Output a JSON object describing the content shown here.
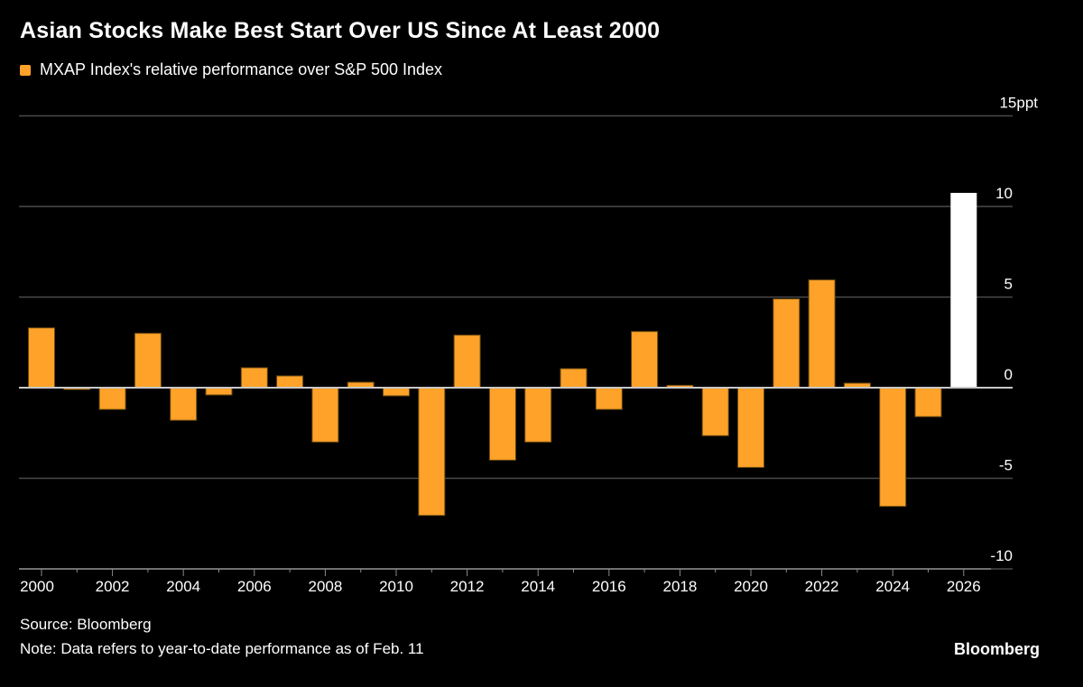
{
  "chart_data": {
    "type": "bar",
    "title": "Asian Stocks Make Best Start Over US Since At Least 2000",
    "legend": [
      {
        "name": "MXAP Index's relative performance over S&P 500 Index",
        "color": "#FFA229"
      }
    ],
    "legend_placement": "top-left",
    "categories": [
      "2000",
      "2001",
      "2002",
      "2003",
      "2004",
      "2005",
      "2006",
      "2007",
      "2008",
      "2009",
      "2010",
      "2011",
      "2012",
      "2013",
      "2014",
      "2015",
      "2016",
      "2017",
      "2018",
      "2019",
      "2020",
      "2021",
      "2022",
      "2023",
      "2024",
      "2025",
      "2026"
    ],
    "series": [
      {
        "name": "MXAP Index's relative performance over S&P 500 Index",
        "values": [
          3.3,
          -0.1,
          -1.2,
          3.0,
          -1.8,
          -0.4,
          1.1,
          0.65,
          -3.0,
          0.3,
          -0.45,
          -7.05,
          2.9,
          -4.0,
          -3.0,
          1.05,
          -1.2,
          3.1,
          0.13,
          -2.65,
          -4.4,
          4.9,
          5.95,
          0.25,
          -6.55,
          -1.6,
          10.75
        ]
      }
    ],
    "highlight": {
      "category": "2026",
      "color": "#FFFFFF"
    },
    "bar_color": "#FFA229",
    "x_tick_labels": [
      "2000",
      "2002",
      "2004",
      "2006",
      "2008",
      "2010",
      "2012",
      "2014",
      "2016",
      "2018",
      "2020",
      "2022",
      "2024",
      "2026"
    ],
    "y_ticks": [
      15,
      10,
      5,
      0,
      -5,
      -10
    ],
    "y_tick_labels": [
      "15ppt",
      "10",
      "5",
      "0",
      "-5",
      "-10"
    ],
    "ylim": [
      -10,
      15
    ],
    "y_axis_position": "right",
    "grid": true,
    "source": "Source: Bloomberg",
    "note": "Note: Data refers to year-to-date performance as of Feb. 11",
    "brand": "Bloomberg"
  }
}
